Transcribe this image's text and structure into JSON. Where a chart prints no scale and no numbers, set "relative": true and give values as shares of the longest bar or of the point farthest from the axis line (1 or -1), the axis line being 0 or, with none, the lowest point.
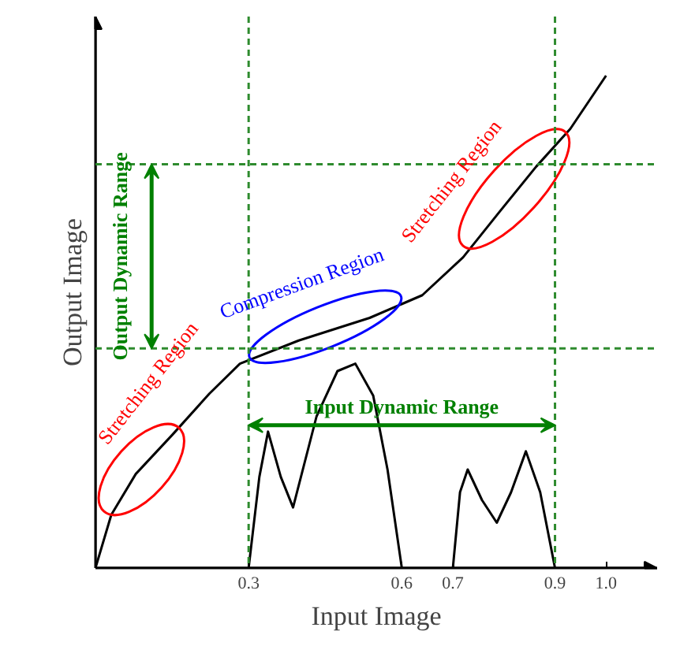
{
  "chart_data": {
    "type": "line",
    "relative": true,
    "xlabel": "Input Image",
    "ylabel": "Output Image",
    "xlim": [
      0,
      1.1
    ],
    "xticks": [
      0.3,
      0.6,
      0.7,
      {
        "value": 1.0,
        "label": "1.0"
      },
      0.9
    ],
    "tick_labels": "x",
    "grid": false,
    "marker": "none",
    "line_style": "solid",
    "series": [
      {
        "color": "#000000",
        "x": [
          0,
          0.031,
          0.079,
          0.151,
          0.223,
          0.283,
          0.398,
          0.537,
          0.64,
          0.72,
          0.791,
          0.863,
          0.93,
          1.0
        ],
        "values": [
          0,
          0.108,
          0.191,
          0.271,
          0.354,
          0.415,
          0.462,
          0.508,
          0.554,
          0.631,
          0.723,
          0.815,
          0.892,
          1.0
        ]
      },
      {
        "color": "#000000",
        "x": [
          0.3,
          0.321,
          0.338,
          0.363,
          0.387,
          0.433,
          0.474,
          0.509,
          0.544,
          0.572,
          0.6
        ],
        "values": [
          0,
          0.185,
          0.277,
          0.185,
          0.123,
          0.308,
          0.4,
          0.415,
          0.35,
          0.2,
          0
        ]
      },
      {
        "color": "#000000",
        "x": [
          0.7,
          0.714,
          0.729,
          0.757,
          0.786,
          0.814,
          0.843,
          0.871,
          0.9
        ],
        "values": [
          0,
          0.154,
          0.2,
          0.138,
          0.092,
          0.154,
          0.237,
          0.154,
          0
        ]
      }
    ],
    "ref_lines": [
      {
        "axis": "y",
        "value": 0.82,
        "color": "#2e8b2e",
        "line_style": "dashed"
      },
      {
        "axis": "y",
        "value": 0.446,
        "color": "#2e8b2e",
        "line_style": "dashed"
      },
      {
        "axis": "x",
        "value": 0.3,
        "color": "#2e8b2e",
        "line_style": "dashed"
      },
      {
        "axis": "x",
        "value": 0.9,
        "color": "#2e8b2e",
        "line_style": "dashed"
      }
    ],
    "annotations": [
      {
        "text": "Stretching Region",
        "x": 0.09,
        "y": 0.2
      },
      {
        "text": "Compression Region",
        "x": 0.45,
        "y": 0.49
      },
      {
        "text": "Stretching Region",
        "x": 0.82,
        "y": 0.77
      },
      "Output Dynamic Range",
      "Input Dynamic Range"
    ]
  }
}
